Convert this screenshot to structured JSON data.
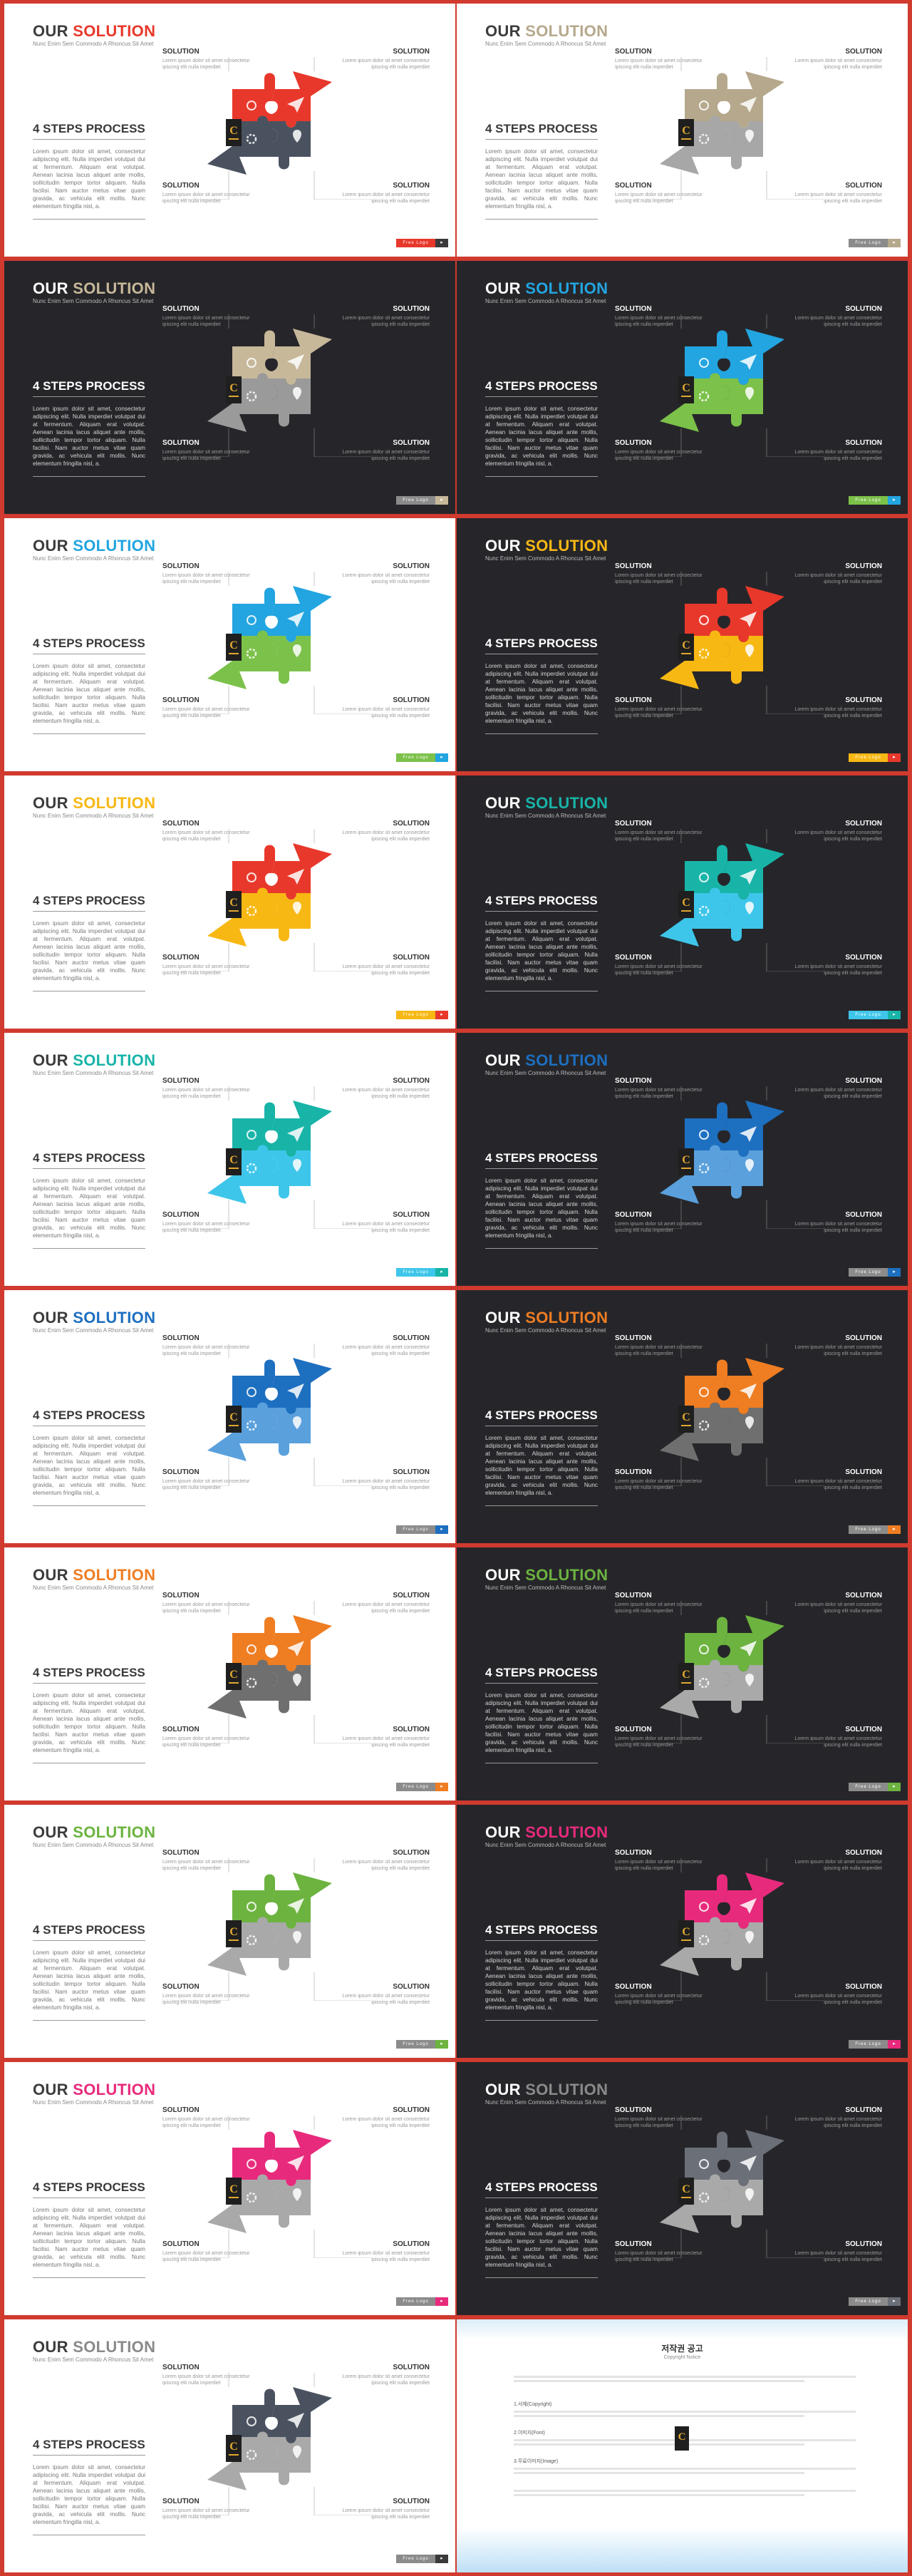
{
  "subtitle": "Nunc Enim Sem Commodo A Rhoncus Sit Amet",
  "steps_title": "4 STEPS PROCESS",
  "body_text": "Lorem ipsum dolor sit amet, consectetur adipiscing elit. Nulla imperdiet volutpat dui at fermentum. Aliquam erat volutpat. Aenean lacinia lacus aliquet ante mollis, sollicitudin tempor tortor aliquam. Nulla facilisi. Nam auctor metus vitae quam gravida, ac vehicula elit mollis. Nunc elementum fringilla nisl, a.",
  "solution_heading": "SOLUTION",
  "solution_text": "Lorem ipsum dolor sit amet consectetur ipiscing elit nulla imperdiet",
  "footer_label": "Free Logo",
  "slides": [
    {
      "theme": "light",
      "title": [
        "OUR",
        "SOLUTION"
      ],
      "accent": "#e8382b",
      "colors": [
        "#e8382b",
        "#e8382b",
        "#4a5260",
        "#4a5260"
      ],
      "footer": [
        "#e8382b",
        "#3a3a3a"
      ]
    },
    {
      "theme": "light",
      "title": [
        "OUR",
        "SOLUTION"
      ],
      "accent": "#b6a88c",
      "colors": [
        "#b6a88c",
        "#b6a88c",
        "#a7a7a7",
        "#a7a7a7"
      ],
      "footer": [
        "#8b8b8b",
        "#b6a88c"
      ]
    },
    {
      "theme": "dark",
      "title": [
        "OUR",
        "SOLUTION"
      ],
      "accent": "#c7b89a",
      "colors": [
        "#c7b89a",
        "#c7b89a",
        "#9a9a9a",
        "#9a9a9a"
      ],
      "footer": [
        "#8b8b8b",
        "#c7b89a"
      ]
    },
    {
      "theme": "dark",
      "title": [
        "OUR",
        "SOLUTION"
      ],
      "accent": "#22a5e0",
      "colors": [
        "#22a5e0",
        "#22a5e0",
        "#7cc14a",
        "#7cc14a"
      ],
      "footer": [
        "#7cc14a",
        "#22a5e0"
      ]
    },
    {
      "theme": "light",
      "title": [
        "OUR",
        "SOLUTION"
      ],
      "accent": "#22a5e0",
      "colors": [
        "#22a5e0",
        "#22a5e0",
        "#7cc14a",
        "#7cc14a"
      ],
      "footer": [
        "#7cc14a",
        "#22a5e0"
      ]
    },
    {
      "theme": "dark",
      "title": [
        "OUR",
        "SOLUTION"
      ],
      "accent": "#f7b814",
      "colors": [
        "#e8382b",
        "#e8382b",
        "#f7b814",
        "#f7b814"
      ],
      "footer": [
        "#f7b814",
        "#e8382b"
      ]
    },
    {
      "theme": "light",
      "title": [
        "OUR",
        "SOLUTION"
      ],
      "accent": "#f7b814",
      "colors": [
        "#e8382b",
        "#e8382b",
        "#f7b814",
        "#f7b814"
      ],
      "footer": [
        "#f7b814",
        "#e8382b"
      ]
    },
    {
      "theme": "dark",
      "title": [
        "OUR",
        "SOLUTION"
      ],
      "accent": "#18b4a8",
      "colors": [
        "#18b4a8",
        "#18b4a8",
        "#3ec6ea",
        "#3ec6ea"
      ],
      "footer": [
        "#3ec6ea",
        "#18b4a8"
      ]
    },
    {
      "theme": "light",
      "title": [
        "OUR",
        "SOLUTION"
      ],
      "accent": "#18b4a8",
      "colors": [
        "#18b4a8",
        "#18b4a8",
        "#3ec6ea",
        "#3ec6ea"
      ],
      "footer": [
        "#3ec6ea",
        "#18b4a8"
      ]
    },
    {
      "theme": "dark",
      "title": [
        "OUR",
        "SOLUTION"
      ],
      "accent": "#1d6fc0",
      "colors": [
        "#1d6fc0",
        "#1d6fc0",
        "#5aa0dc",
        "#5aa0dc"
      ],
      "footer": [
        "#8b8b8b",
        "#1d6fc0"
      ]
    },
    {
      "theme": "light",
      "title": [
        "OUR",
        "SOLUTION"
      ],
      "accent": "#1d6fc0",
      "colors": [
        "#1d6fc0",
        "#1d6fc0",
        "#5aa0dc",
        "#5aa0dc"
      ],
      "footer": [
        "#8b8b8b",
        "#1d6fc0"
      ]
    },
    {
      "theme": "dark",
      "title": [
        "OUR",
        "SOLUTION"
      ],
      "accent": "#ef7d22",
      "colors": [
        "#ef7d22",
        "#ef7d22",
        "#6f6f6f",
        "#6f6f6f"
      ],
      "footer": [
        "#8b8b8b",
        "#ef7d22"
      ]
    },
    {
      "theme": "light",
      "title": [
        "OUR",
        "SOLUTION"
      ],
      "accent": "#ef7d22",
      "colors": [
        "#ef7d22",
        "#ef7d22",
        "#6f6f6f",
        "#6f6f6f"
      ],
      "footer": [
        "#8b8b8b",
        "#ef7d22"
      ]
    },
    {
      "theme": "dark",
      "title": [
        "OUR",
        "SOLUTION"
      ],
      "accent": "#6cb33f",
      "colors": [
        "#6cb33f",
        "#6cb33f",
        "#a9a9a9",
        "#a9a9a9"
      ],
      "footer": [
        "#8b8b8b",
        "#6cb33f"
      ]
    },
    {
      "theme": "light",
      "title": [
        "OUR",
        "SOLUTION"
      ],
      "accent": "#6cb33f",
      "colors": [
        "#6cb33f",
        "#6cb33f",
        "#a9a9a9",
        "#a9a9a9"
      ],
      "footer": [
        "#8b8b8b",
        "#6cb33f"
      ]
    },
    {
      "theme": "dark",
      "title": [
        "OUR",
        "SOLUTION"
      ],
      "accent": "#e82a7c",
      "colors": [
        "#e82a7c",
        "#e82a7c",
        "#a9a9a9",
        "#a9a9a9"
      ],
      "footer": [
        "#8b8b8b",
        "#e82a7c"
      ]
    },
    {
      "theme": "light",
      "title": [
        "OUR",
        "SOLUTION"
      ],
      "accent": "#e82a7c",
      "colors": [
        "#e82a7c",
        "#e82a7c",
        "#a9a9a9",
        "#a9a9a9"
      ],
      "footer": [
        "#8b8b8b",
        "#e82a7c"
      ]
    },
    {
      "theme": "dark",
      "title": [
        "OUR",
        "SOLUTION"
      ],
      "accent": "#8a8a8a",
      "colors": [
        "#6a6f78",
        "#6a6f78",
        "#a9a9a9",
        "#a9a9a9"
      ],
      "footer": [
        "#8b8b8b",
        "#6a6f78"
      ]
    },
    {
      "theme": "light",
      "title": [
        "OUR",
        "SOLUTION"
      ],
      "accent": "#8a8a8a",
      "colors": [
        "#4a5260",
        "#4a5260",
        "#a9a9a9",
        "#a9a9a9"
      ],
      "footer": [
        "#8b8b8b",
        "#3a3a3a"
      ]
    }
  ],
  "notice": {
    "title": "저작권 공고",
    "subtitle": "Copyright Notice",
    "paragraphs": [
      "",
      "1.서체(Copyright)",
      "2.이미지(Font)",
      "3.무료이미지(Image)",
      ""
    ]
  }
}
